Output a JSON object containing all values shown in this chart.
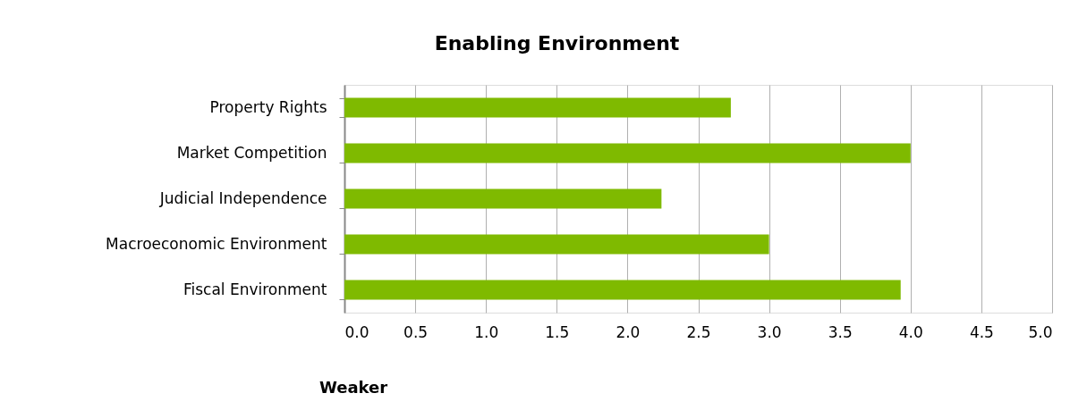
{
  "chart_data": {
    "type": "bar",
    "orientation": "horizontal",
    "title": "Enabling Environment",
    "categories": [
      "Property Rights",
      "Market Competition",
      "Judicial Independence",
      "Macroeconomic Environment",
      "Fiscal Environment"
    ],
    "values": [
      2.73,
      4.0,
      2.24,
      3.0,
      3.93
    ],
    "color": "#7fba00",
    "xlim": [
      0,
      5.0
    ],
    "xticks": [
      {
        "value": 0,
        "label": "0.0"
      },
      {
        "value": 0.5,
        "label": "0.5"
      },
      {
        "value": 1,
        "label": "1.0"
      },
      {
        "value": 1.5,
        "label": "1.5"
      },
      {
        "value": 2,
        "label": "2.0"
      },
      {
        "value": 2.5,
        "label": "2.5"
      },
      {
        "value": 3,
        "label": "3.0"
      },
      {
        "value": 3.5,
        "label": "3.5"
      },
      {
        "value": 4,
        "label": "4.0"
      },
      {
        "value": 4.5,
        "label": "4.5"
      },
      {
        "value": 5,
        "label": "5.0"
      }
    ],
    "grid": "x",
    "annotations": [
      "Weaker"
    ]
  }
}
